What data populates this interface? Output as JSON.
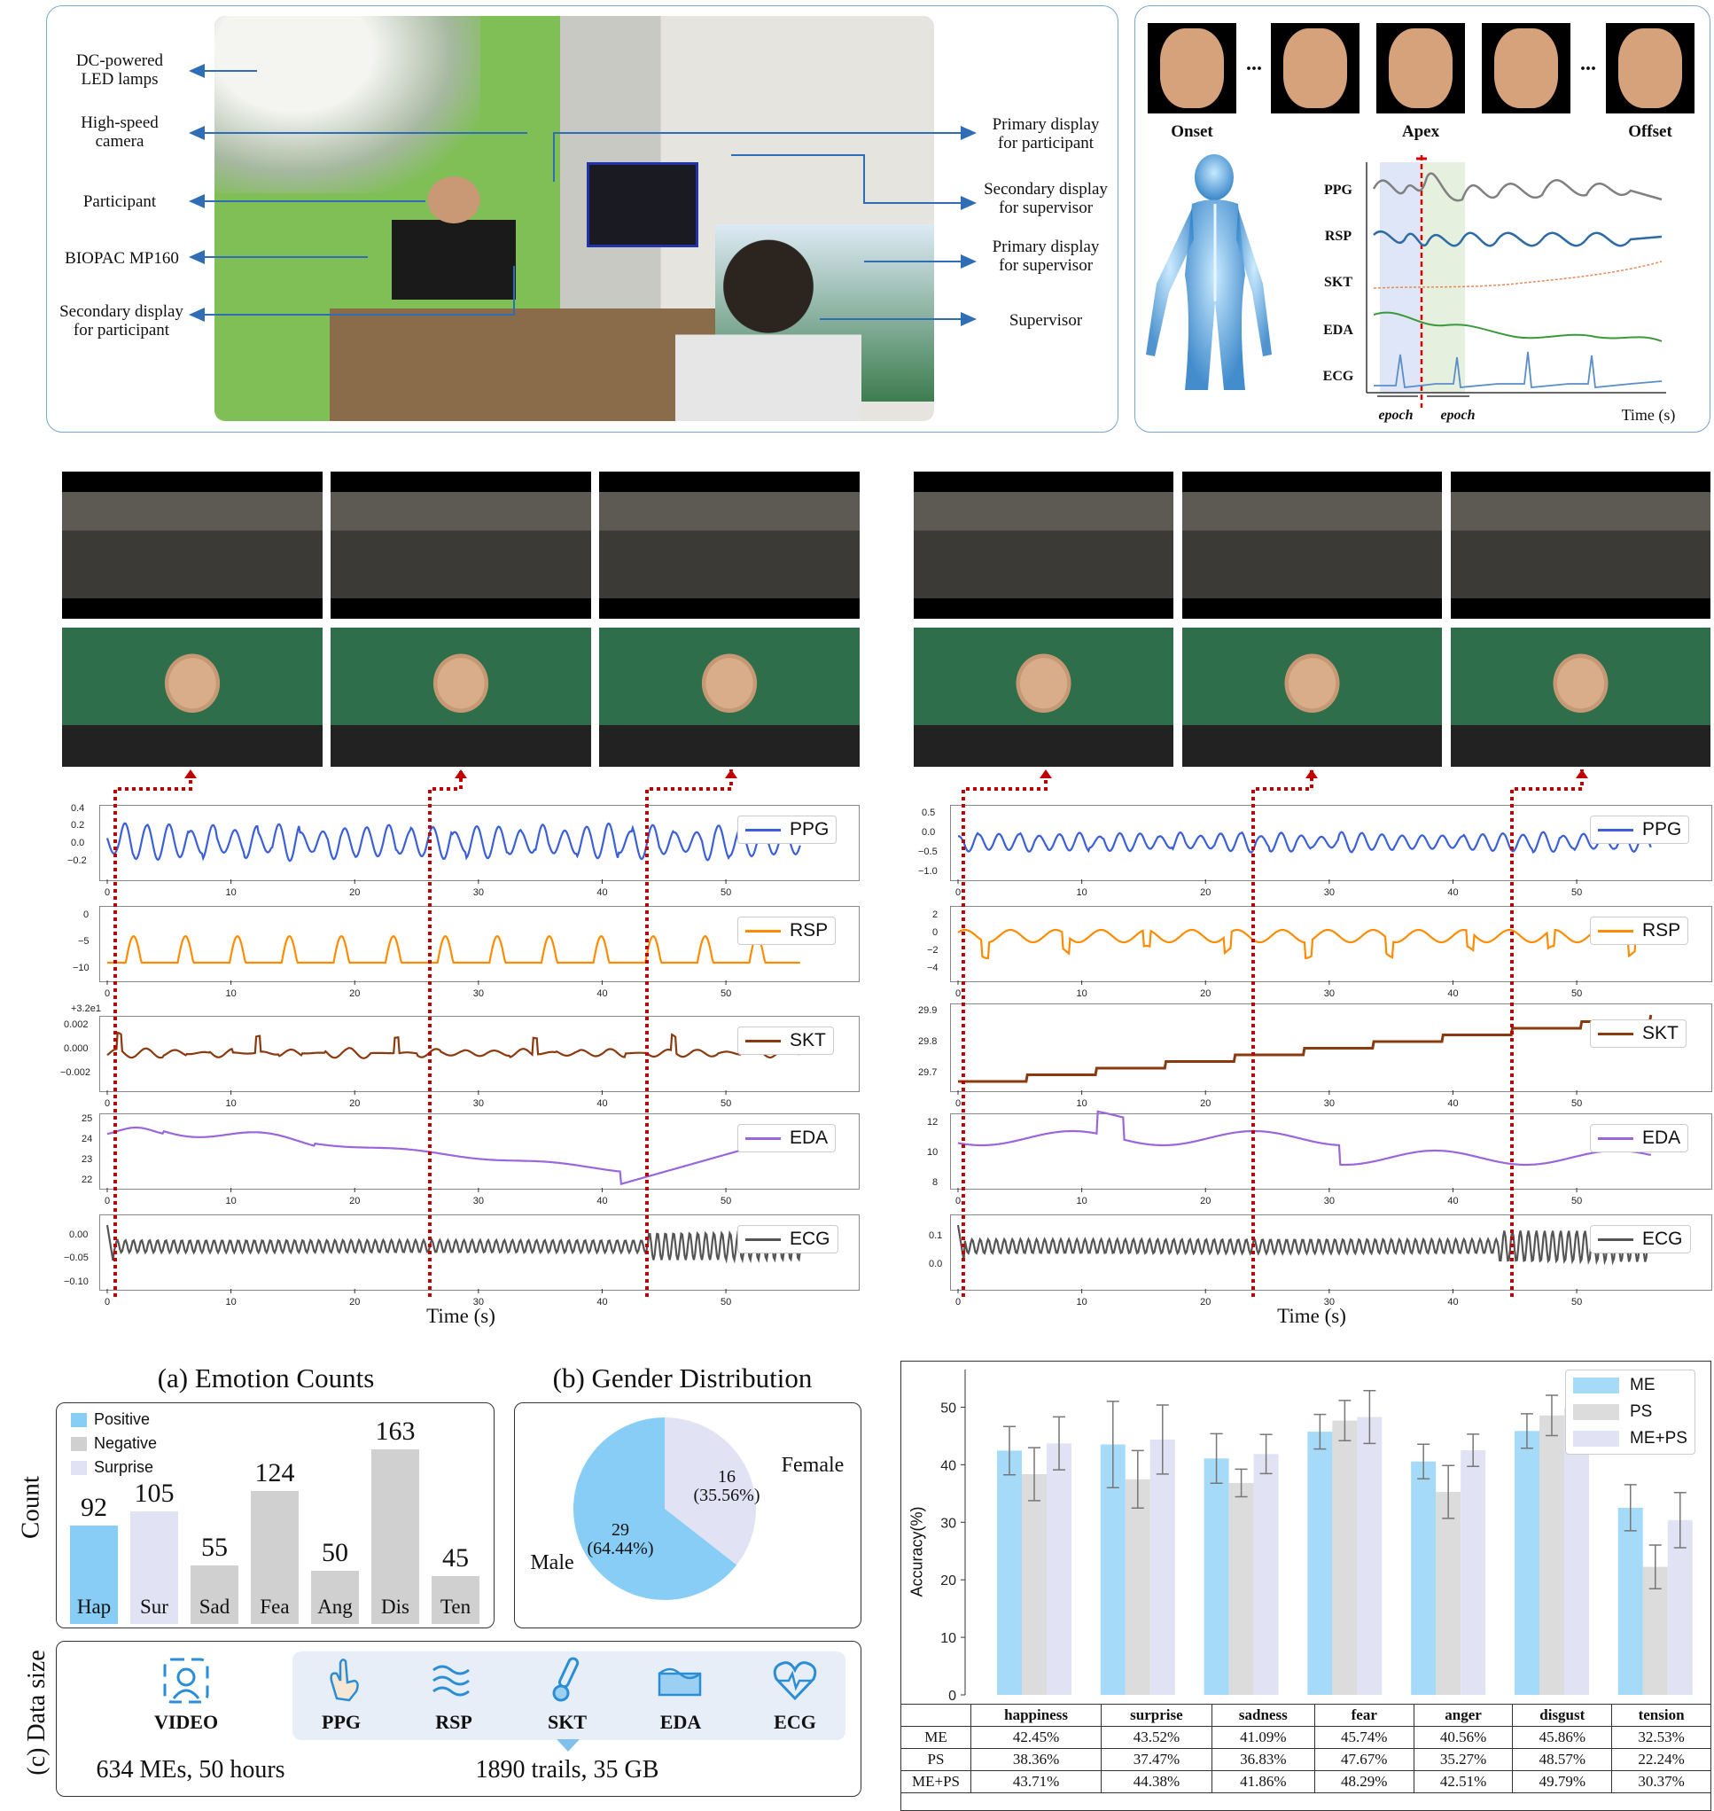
{
  "setup": {
    "left_labels": [
      "DC-powered LED lamps",
      "High-speed camera",
      "Participant",
      "BIOPAC MP160",
      "Secondary display for participant"
    ],
    "left_labels_lines": [
      [
        "DC-powered",
        "LED lamps"
      ],
      [
        "High-speed",
        "camera"
      ],
      [
        "Participant"
      ],
      [
        "BIOPAC MP160"
      ],
      [
        "Secondary display",
        "for participant"
      ]
    ],
    "right_labels_lines": [
      [
        "Primary display",
        "for participant"
      ],
      [
        "Secondary display",
        "for supervisor"
      ],
      [
        "Primary display",
        "for supervisor"
      ],
      [
        "Supervisor"
      ]
    ]
  },
  "epoch_panel": {
    "frame_labels": [
      "Onset",
      "Apex",
      "Offset"
    ],
    "dots": "...",
    "signals": [
      "PPG",
      "RSP",
      "SKT",
      "EDA",
      "ECG"
    ],
    "epoch_left": "epoch",
    "epoch_right": "epoch",
    "time_label": "Time (s)"
  },
  "signals_left": {
    "PPG": {
      "ticks": [
        "0.4",
        "0.2",
        "0.0",
        "−0.2"
      ]
    },
    "RSP": {
      "ticks": [
        "0",
        "−5",
        "−10"
      ]
    },
    "SKT": {
      "offset": "+3.2e1",
      "ticks": [
        "0.002",
        "0.000",
        "−0.002"
      ]
    },
    "EDA": {
      "ticks": [
        "25",
        "24",
        "23",
        "22"
      ]
    },
    "ECG": {
      "ticks": [
        "0.00",
        "−0.05",
        "−0.10"
      ]
    },
    "x_ticks": [
      "0",
      "10",
      "20",
      "30",
      "40",
      "50"
    ],
    "xlabel": "Time (s)"
  },
  "signals_right": {
    "PPG": {
      "ticks": [
        "0.5",
        "0.0",
        "−0.5",
        "−1.0"
      ]
    },
    "RSP": {
      "ticks": [
        "2",
        "0",
        "−2",
        "−4"
      ]
    },
    "SKT": {
      "ticks": [
        "29.9",
        "29.8",
        "29.7"
      ]
    },
    "EDA": {
      "ticks": [
        "12",
        "10",
        "8"
      ]
    },
    "ECG": {
      "ticks": [
        "0.1",
        "0.0"
      ]
    },
    "x_ticks": [
      "0",
      "10",
      "20",
      "30",
      "40",
      "50"
    ],
    "xlabel": "Time (s)"
  },
  "legend_names": [
    "PPG",
    "RSP",
    "SKT",
    "EDA",
    "ECG"
  ],
  "colors": {
    "PPG": "#3b5fd9",
    "RSP": "#ff8c00",
    "SKT": "#8b3a0f",
    "EDA": "#9966dd",
    "ECG": "#555555",
    "positive": "#87cdf5",
    "negative": "#d0d0d0",
    "surprise": "#e2e2f5",
    "dotted": "#c00000",
    "panel_border": "#7aa6cf"
  },
  "chart_data": [
    {
      "type": "bar",
      "title": "(a) Emotion Counts",
      "ylabel": "Count",
      "categories": [
        "Hap",
        "Sur",
        "Sad",
        "Fea",
        "Ang",
        "Dis",
        "Ten"
      ],
      "values": [
        92,
        105,
        55,
        124,
        50,
        163,
        45
      ],
      "groups": [
        "Positive",
        "Surprise",
        "Negative",
        "Negative",
        "Negative",
        "Negative",
        "Negative"
      ],
      "legend": [
        "Positive",
        "Negative",
        "Surprise"
      ]
    },
    {
      "type": "pie",
      "title": "(b) Gender Distribution",
      "labels": [
        "Male",
        "Female"
      ],
      "values": [
        29,
        16
      ],
      "value_labels": [
        "29",
        "16"
      ],
      "percent_labels": [
        "(64.44%)",
        "(35.56%)"
      ]
    },
    {
      "type": "bar",
      "ylabel": "Accuracy(%)",
      "ylim": [
        0,
        55
      ],
      "yticks": [
        "0",
        "10",
        "20",
        "30",
        "40",
        "50"
      ],
      "categories": [
        "happiness",
        "surprise",
        "sadness",
        "fear",
        "anger",
        "disgust",
        "tension"
      ],
      "series": [
        {
          "name": "ME",
          "values": [
            42.45,
            43.52,
            41.09,
            45.74,
            40.56,
            45.86,
            32.53
          ],
          "err": [
            4.2,
            7.5,
            4.3,
            3.0,
            3.0,
            3.0,
            4.0
          ]
        },
        {
          "name": "PS",
          "values": [
            38.36,
            37.47,
            36.83,
            47.67,
            35.27,
            48.57,
            22.24
          ],
          "err": [
            4.6,
            5.0,
            2.4,
            3.5,
            4.6,
            3.5,
            3.8
          ]
        },
        {
          "name": "ME+PS",
          "values": [
            43.71,
            44.38,
            41.86,
            48.29,
            42.51,
            49.79,
            30.37
          ],
          "err": [
            4.6,
            6.0,
            3.4,
            4.6,
            2.8,
            3.2,
            4.8
          ]
        }
      ],
      "table": {
        "header": [
          "",
          "happiness",
          "surprise",
          "sadness",
          "fear",
          "anger",
          "disgust",
          "tension"
        ],
        "rows": [
          [
            "ME",
            "42.45%",
            "43.52%",
            "41.09%",
            "45.74%",
            "40.56%",
            "45.86%",
            "32.53%"
          ],
          [
            "PS",
            "38.36%",
            "37.47%",
            "36.83%",
            "47.67%",
            "35.27%",
            "48.57%",
            "22.24%"
          ],
          [
            "ME+PS",
            "43.71%",
            "44.38%",
            "41.86%",
            "48.29%",
            "42.51%",
            "49.79%",
            "30.37%"
          ]
        ]
      }
    }
  ],
  "data_size": {
    "side_label": "(c) Data size",
    "video_label": "VIDEO",
    "modalities": [
      "PPG",
      "RSP",
      "SKT",
      "EDA",
      "ECG"
    ],
    "video_summary": "634 MEs, 50 hours",
    "signal_summary": "1890 trails, 35 GB"
  }
}
